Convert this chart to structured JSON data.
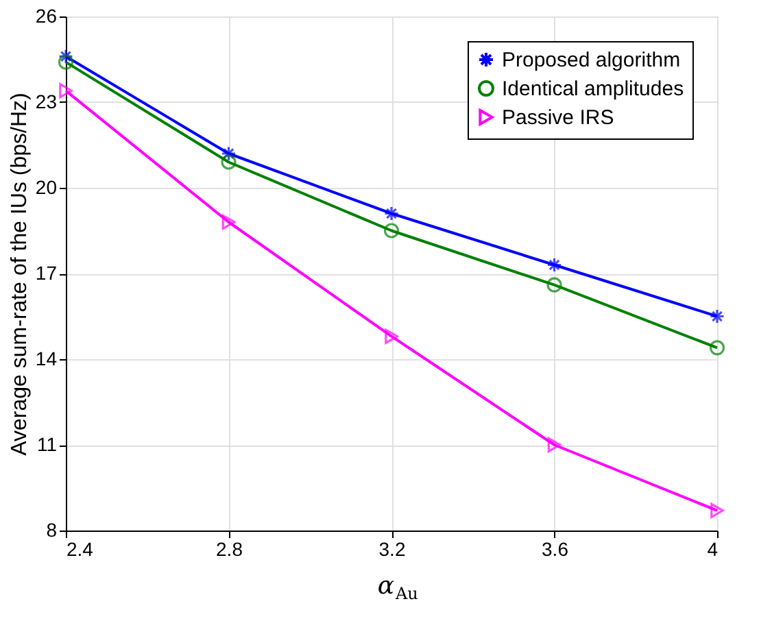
{
  "chart_data": {
    "type": "line",
    "xlabel": "α$_{Au}$",
    "ylabel": "Average sum-rate of the IUs (bps/Hz)",
    "x": [
      2.4,
      2.8,
      3.2,
      3.6,
      4
    ],
    "xlim": [
      2.4,
      4
    ],
    "xticks": [
      2.4,
      2.8,
      3.2,
      3.6,
      4
    ],
    "ylim": [
      8,
      26
    ],
    "yticks": [
      8,
      11,
      14,
      17,
      20,
      23,
      26
    ],
    "grid": true,
    "legend": "top right",
    "line_style": "solid",
    "series": [
      {
        "name": "Proposed algorithm",
        "color": "#0000ff",
        "marker": "cross",
        "values": [
          24.6,
          21.2,
          19.1,
          17.3,
          15.5
        ]
      },
      {
        "name": "Identical amplitudes",
        "color": "#008000",
        "marker": "circle",
        "values": [
          24.4,
          20.9,
          18.5,
          16.6,
          14.4
        ]
      },
      {
        "name": "Passive IRS",
        "color": "#ff00ff",
        "marker": "triangle",
        "values": [
          23.4,
          18.8,
          14.8,
          11.0,
          8.7
        ]
      }
    ]
  }
}
